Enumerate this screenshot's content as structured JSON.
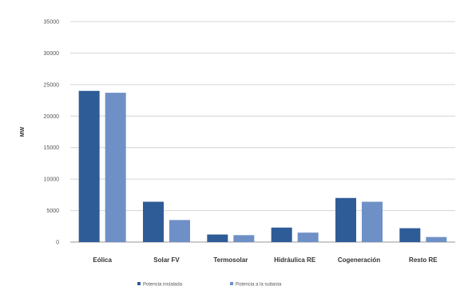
{
  "chart_data": {
    "type": "bar",
    "categories": [
      "Eólica",
      "Solar FV",
      "Termosolar",
      "Hidráulica RE",
      "Cogeneración",
      "Resto RE"
    ],
    "series": [
      {
        "name": "Potencia instalada",
        "color": "#2E5C97",
        "values": [
          24000,
          6400,
          1200,
          2300,
          7000,
          2200
        ]
      },
      {
        "name": "Potencia a la subasta",
        "color": "#6E90C6",
        "values": [
          23700,
          3500,
          1100,
          1500,
          6400,
          800
        ]
      }
    ],
    "yticks": [
      "0",
      "5000",
      "10000",
      "15000",
      "20000",
      "25000",
      "30000",
      "35000"
    ],
    "ylabel": "MW",
    "ylim": [
      0,
      35000
    ],
    "grid": true,
    "legend_position": "bottom"
  }
}
